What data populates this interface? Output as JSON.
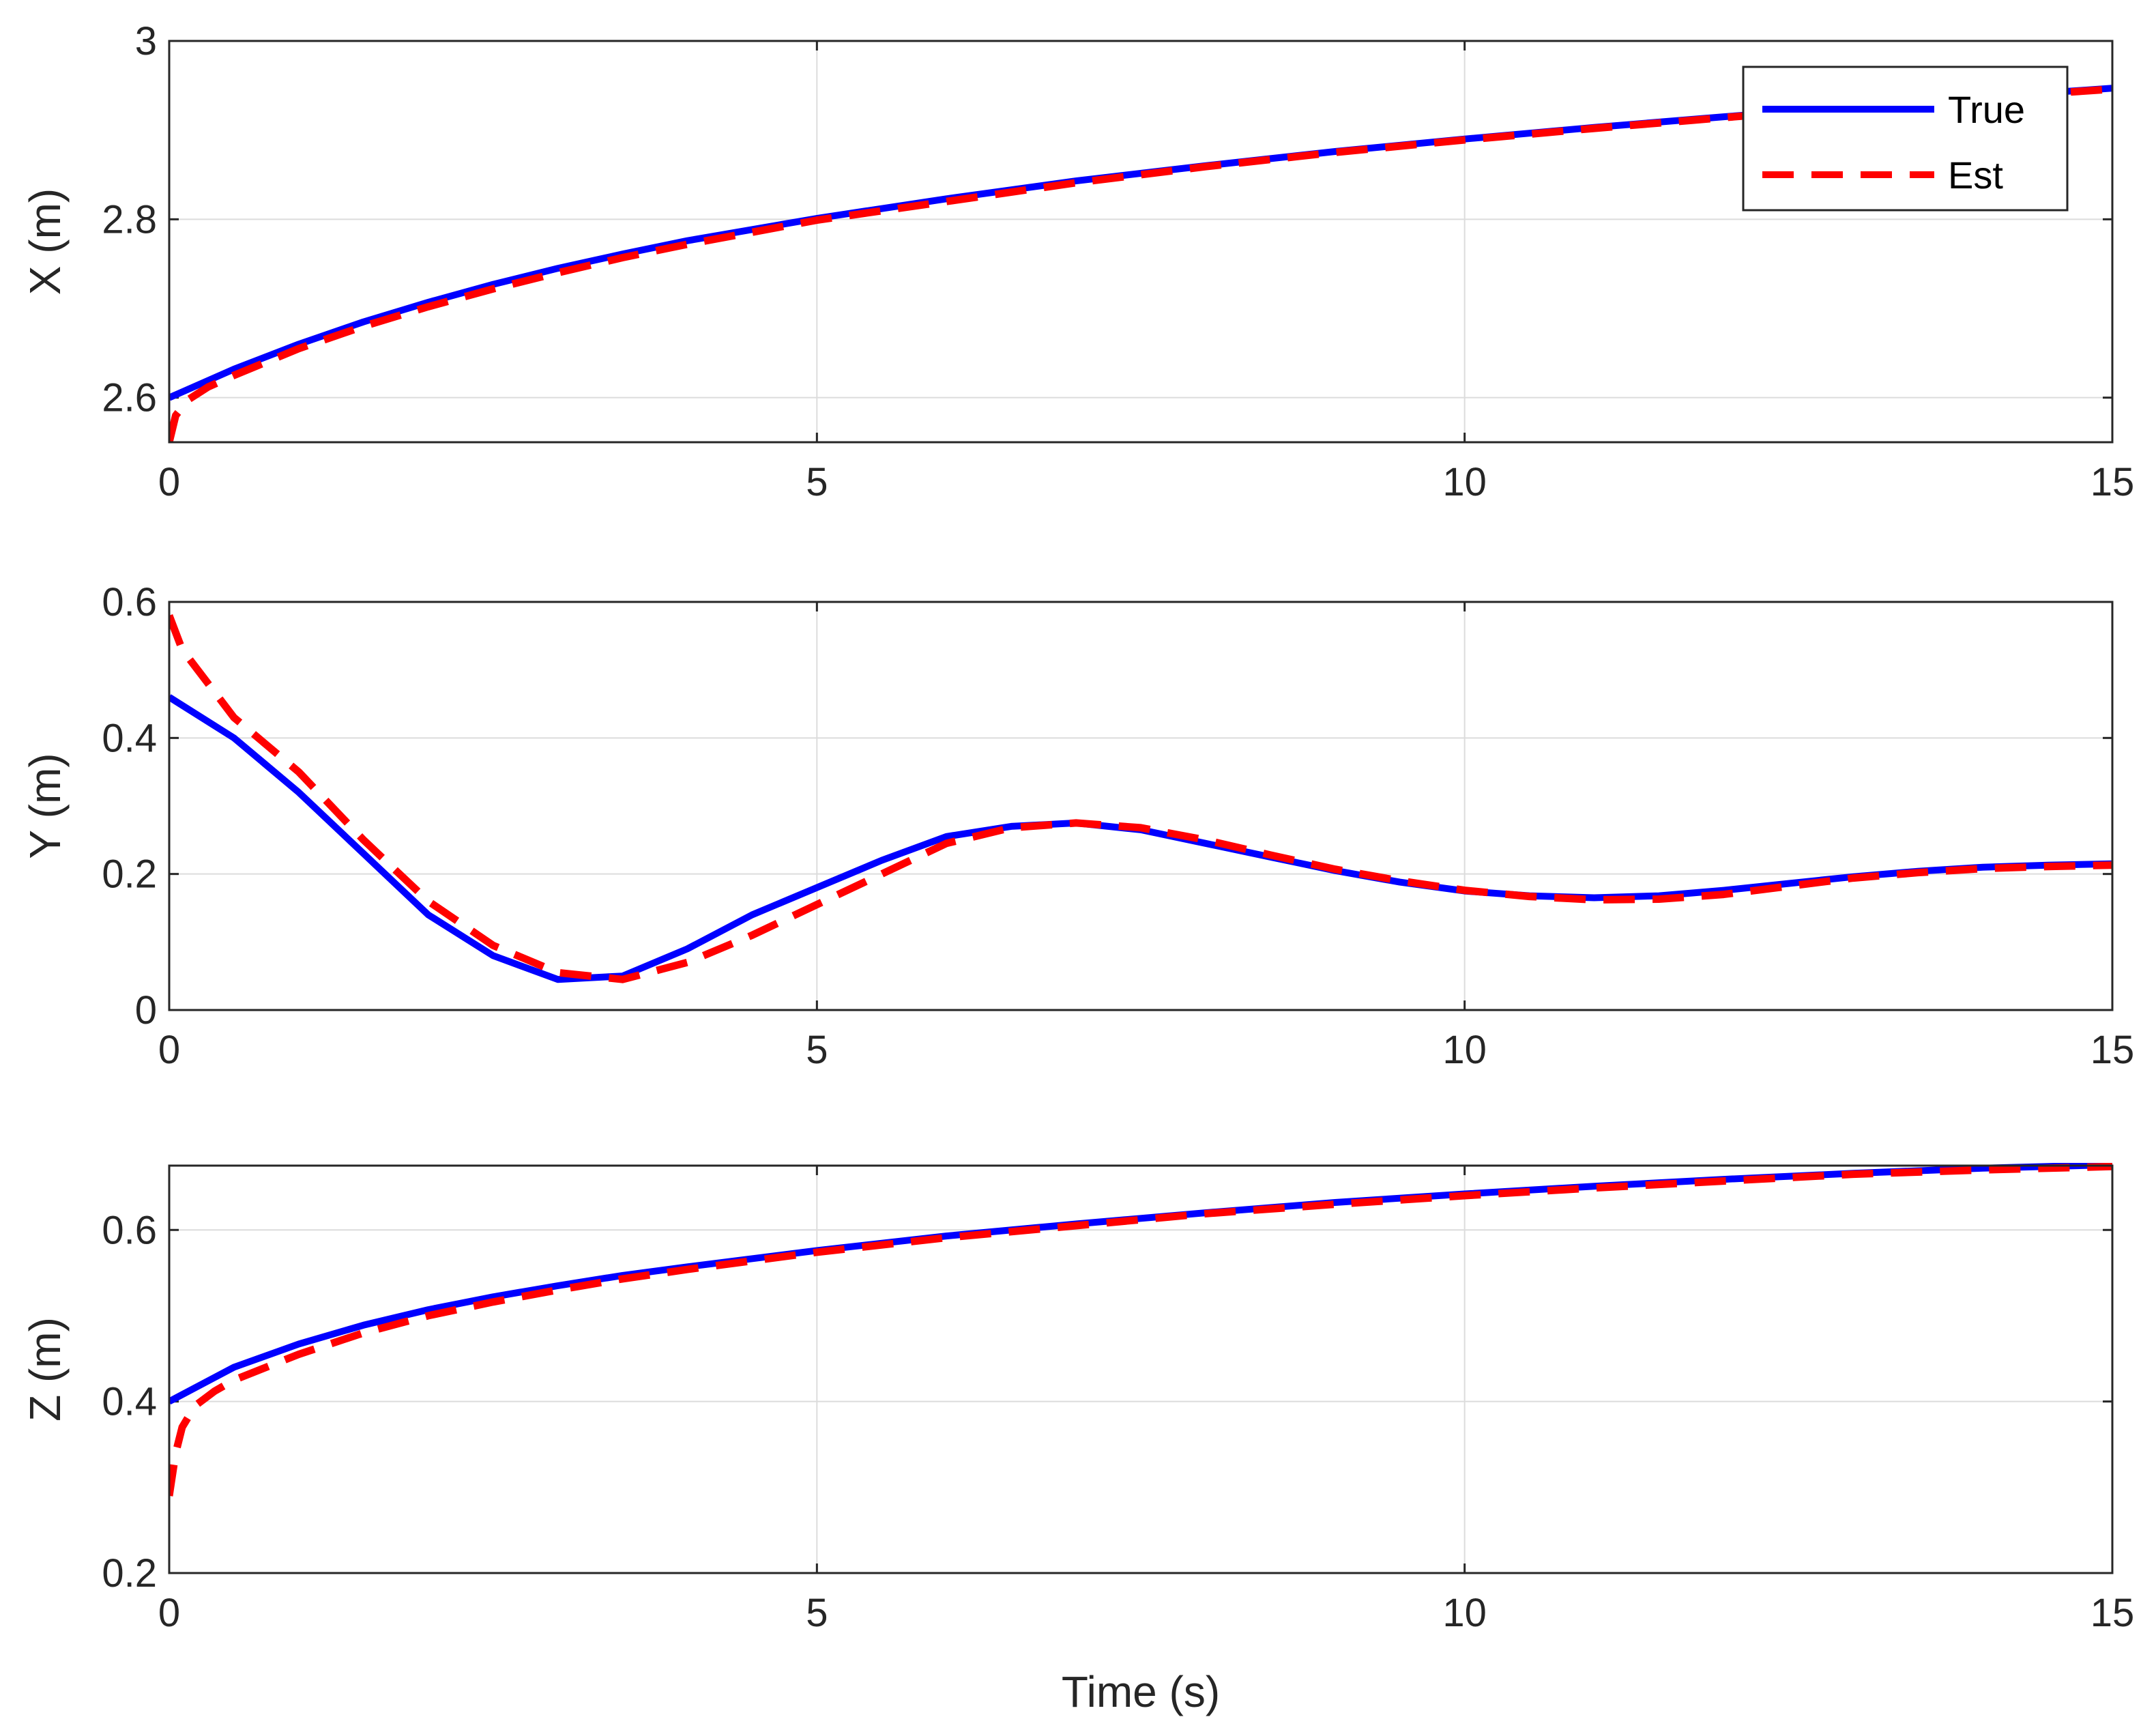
{
  "chart_data": [
    {
      "type": "line",
      "ylabel": "X (m)",
      "xlabel": "",
      "xlim": [
        0,
        15
      ],
      "ylim": [
        2.55,
        3.0
      ],
      "xticks": [
        "0",
        "5",
        "10",
        "15"
      ],
      "yticks": [
        "2.6",
        "2.8",
        "3"
      ],
      "grid": true,
      "legend": "top-right",
      "series": [
        {
          "name": "True",
          "color": "#0000ff",
          "style": "solid",
          "x": [
            0,
            0.5,
            1,
            1.5,
            2,
            2.5,
            3,
            3.5,
            4,
            5,
            6,
            7,
            8,
            9,
            10,
            11,
            12,
            13,
            14,
            15
          ],
          "y": [
            2.6,
            2.632,
            2.66,
            2.685,
            2.707,
            2.727,
            2.745,
            2.761,
            2.776,
            2.801,
            2.823,
            2.843,
            2.86,
            2.876,
            2.89,
            2.903,
            2.915,
            2.926,
            2.937,
            2.947
          ]
        },
        {
          "name": "Est",
          "color": "#ff0000",
          "style": "dashed",
          "x": [
            0,
            0.05,
            0.15,
            0.3,
            0.5,
            1,
            1.5,
            2,
            2.5,
            3,
            3.5,
            4,
            5,
            6,
            7,
            8,
            9,
            10,
            11,
            12,
            13,
            14,
            15
          ],
          "y": [
            2.55,
            2.58,
            2.598,
            2.612,
            2.625,
            2.655,
            2.68,
            2.702,
            2.722,
            2.74,
            2.757,
            2.772,
            2.799,
            2.82,
            2.841,
            2.859,
            2.875,
            2.889,
            2.902,
            2.914,
            2.926,
            2.936,
            2.946
          ]
        }
      ]
    },
    {
      "type": "line",
      "ylabel": "Y (m)",
      "xlabel": "",
      "xlim": [
        0,
        15
      ],
      "ylim": [
        0,
        0.6
      ],
      "xticks": [
        "0",
        "5",
        "10",
        "15"
      ],
      "yticks": [
        "0",
        "0.2",
        "0.4",
        "0.6"
      ],
      "grid": true,
      "series": [
        {
          "name": "True",
          "color": "#0000ff",
          "style": "solid",
          "x": [
            0,
            0.5,
            1,
            1.5,
            2,
            2.5,
            3,
            3.5,
            4,
            4.5,
            5,
            5.5,
            6,
            6.5,
            7,
            7.5,
            8,
            8.5,
            9,
            9.5,
            10,
            10.5,
            11,
            11.5,
            12,
            12.5,
            13,
            13.5,
            14,
            14.5,
            15
          ],
          "y": [
            0.46,
            0.4,
            0.32,
            0.23,
            0.14,
            0.08,
            0.045,
            0.05,
            0.09,
            0.14,
            0.18,
            0.22,
            0.255,
            0.27,
            0.275,
            0.265,
            0.245,
            0.225,
            0.205,
            0.188,
            0.175,
            0.168,
            0.165,
            0.168,
            0.176,
            0.186,
            0.196,
            0.204,
            0.21,
            0.213,
            0.215
          ]
        },
        {
          "name": "Est",
          "color": "#ff0000",
          "style": "dashed",
          "x": [
            0,
            0.1,
            0.3,
            0.5,
            1,
            1.5,
            2,
            2.5,
            3,
            3.5,
            4,
            4.5,
            5,
            5.5,
            6,
            6.5,
            7,
            7.5,
            8,
            8.5,
            9,
            9.5,
            10,
            10.5,
            11,
            11.5,
            12,
            12.5,
            13,
            13.5,
            14,
            14.5,
            15
          ],
          "y": [
            0.58,
            0.53,
            0.48,
            0.43,
            0.35,
            0.25,
            0.16,
            0.095,
            0.055,
            0.045,
            0.07,
            0.11,
            0.155,
            0.2,
            0.245,
            0.268,
            0.275,
            0.268,
            0.25,
            0.228,
            0.207,
            0.19,
            0.176,
            0.167,
            0.162,
            0.163,
            0.17,
            0.182,
            0.194,
            0.202,
            0.208,
            0.211,
            0.213
          ]
        }
      ]
    },
    {
      "type": "line",
      "ylabel": "Z (m)",
      "xlabel": "Time (s)",
      "xlim": [
        0,
        15
      ],
      "ylim": [
        0.2,
        0.675
      ],
      "xticks": [
        "0",
        "5",
        "10",
        "15"
      ],
      "yticks": [
        "0.2",
        "0.4",
        "0.6"
      ],
      "grid": true,
      "series": [
        {
          "name": "True",
          "color": "#0000ff",
          "style": "solid",
          "x": [
            0,
            0.5,
            1,
            1.5,
            2,
            2.5,
            3,
            3.5,
            4,
            5,
            6,
            7,
            8,
            9,
            10,
            11,
            12,
            13,
            14,
            15
          ],
          "y": [
            0.4,
            0.44,
            0.467,
            0.489,
            0.507,
            0.522,
            0.535,
            0.547,
            0.557,
            0.576,
            0.593,
            0.607,
            0.62,
            0.632,
            0.642,
            0.651,
            0.659,
            0.666,
            0.672,
            0.676
          ]
        },
        {
          "name": "Est",
          "color": "#ff0000",
          "style": "dashed",
          "x": [
            0,
            0.05,
            0.1,
            0.2,
            0.35,
            0.5,
            1,
            1.5,
            2,
            2.5,
            3,
            3.5,
            4,
            5,
            6,
            7,
            8,
            9,
            10,
            11,
            12,
            13,
            14,
            15
          ],
          "y": [
            0.29,
            0.34,
            0.37,
            0.395,
            0.412,
            0.425,
            0.455,
            0.48,
            0.5,
            0.516,
            0.53,
            0.543,
            0.554,
            0.574,
            0.591,
            0.605,
            0.619,
            0.63,
            0.64,
            0.649,
            0.657,
            0.665,
            0.67,
            0.674
          ]
        }
      ]
    }
  ]
}
